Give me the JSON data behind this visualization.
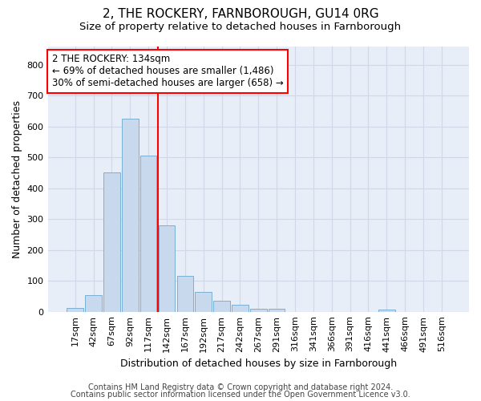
{
  "title1": "2, THE ROCKERY, FARNBOROUGH, GU14 0RG",
  "title2": "Size of property relative to detached houses in Farnborough",
  "xlabel": "Distribution of detached houses by size in Farnborough",
  "ylabel": "Number of detached properties",
  "bar_labels": [
    "17sqm",
    "42sqm",
    "67sqm",
    "92sqm",
    "117sqm",
    "142sqm",
    "167sqm",
    "192sqm",
    "217sqm",
    "242sqm",
    "267sqm",
    "291sqm",
    "316sqm",
    "341sqm",
    "366sqm",
    "391sqm",
    "416sqm",
    "441sqm",
    "466sqm",
    "491sqm",
    "516sqm"
  ],
  "bar_values": [
    12,
    55,
    450,
    625,
    505,
    280,
    117,
    63,
    35,
    22,
    10,
    10,
    0,
    0,
    0,
    0,
    0,
    8,
    0,
    0,
    0
  ],
  "bar_color": "#c8d8ed",
  "bar_edge_color": "#7aafd4",
  "vline_x_pos": 4.5,
  "vline_color": "red",
  "annotation_text": "2 THE ROCKERY: 134sqm\n← 69% of detached houses are smaller (1,486)\n30% of semi-detached houses are larger (658) →",
  "annotation_box_color": "white",
  "annotation_box_edge": "red",
  "ylim": [
    0,
    860
  ],
  "yticks": [
    0,
    100,
    200,
    300,
    400,
    500,
    600,
    700,
    800
  ],
  "background_color": "#e8eef8",
  "grid_color": "#d0d8e8",
  "footer1": "Contains HM Land Registry data © Crown copyright and database right 2024.",
  "footer2": "Contains public sector information licensed under the Open Government Licence v3.0.",
  "title1_fontsize": 11,
  "title2_fontsize": 9.5,
  "xlabel_fontsize": 9,
  "ylabel_fontsize": 9,
  "tick_fontsize": 8,
  "annotation_fontsize": 8.5,
  "footer_fontsize": 7
}
